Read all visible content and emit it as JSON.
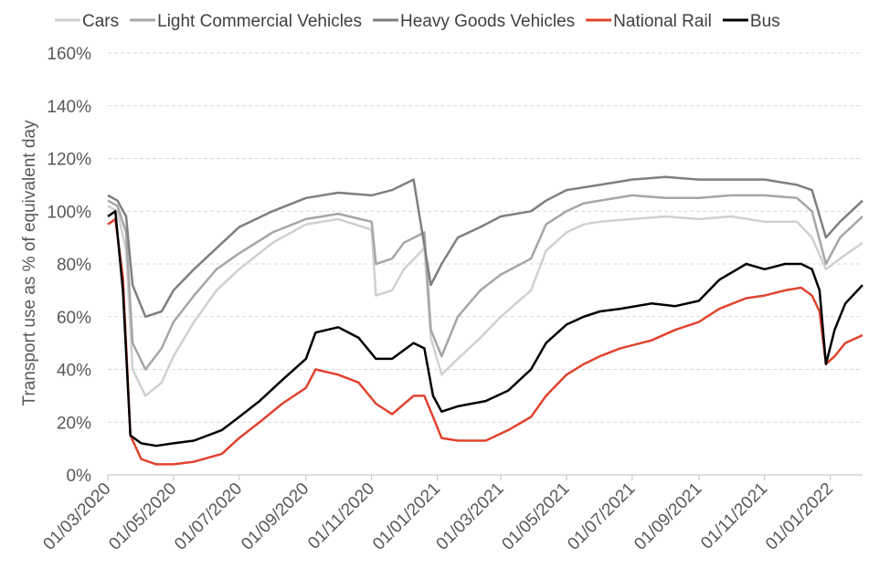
{
  "chart_data": {
    "type": "line",
    "title": "",
    "xlabel": "",
    "ylabel": "Transport use as % of equivalent day",
    "x_range": [
      "2020-03-01",
      "2022-01-31"
    ],
    "ylim": [
      0,
      160
    ],
    "y_ticks": [
      0,
      20,
      40,
      60,
      80,
      100,
      120,
      140,
      160
    ],
    "y_tick_labels": [
      "0%",
      "20%",
      "40%",
      "60%",
      "80%",
      "100%",
      "120%",
      "140%",
      "160%"
    ],
    "x_ticks": [
      "2020-03-01",
      "2020-05-01",
      "2020-07-01",
      "2020-09-01",
      "2020-11-01",
      "2021-01-01",
      "2021-03-01",
      "2021-05-01",
      "2021-07-01",
      "2021-09-01",
      "2021-11-01",
      "2022-01-01"
    ],
    "x_tick_labels": [
      "01/03/2020",
      "01/05/2020",
      "01/07/2020",
      "01/09/2020",
      "01/11/2020",
      "01/01/2021",
      "01/03/2021",
      "01/05/2021",
      "01/07/2021",
      "01/09/2021",
      "01/11/2021",
      "01/01/2022"
    ],
    "grid": "horizontal dashed",
    "legend_position": "top",
    "series": [
      {
        "name": "Cars",
        "color": "#d0d0d0",
        "x": [
          "2020-03-01",
          "2020-03-10",
          "2020-03-18",
          "2020-03-24",
          "2020-04-05",
          "2020-04-20",
          "2020-05-01",
          "2020-05-20",
          "2020-06-10",
          "2020-07-01",
          "2020-08-01",
          "2020-09-01",
          "2020-10-01",
          "2020-11-01",
          "2020-11-05",
          "2020-11-20",
          "2020-12-01",
          "2020-12-20",
          "2020-12-26",
          "2021-01-05",
          "2021-01-20",
          "2021-02-10",
          "2021-03-01",
          "2021-03-29",
          "2021-04-12",
          "2021-05-01",
          "2021-05-17",
          "2021-06-01",
          "2021-07-01",
          "2021-08-01",
          "2021-09-01",
          "2021-10-01",
          "2021-11-01",
          "2021-12-01",
          "2021-12-15",
          "2021-12-28",
          "2022-01-10",
          "2022-01-31"
        ],
        "y": [
          102,
          100,
          85,
          40,
          30,
          35,
          45,
          58,
          70,
          78,
          88,
          95,
          97,
          93,
          68,
          70,
          78,
          86,
          52,
          38,
          44,
          52,
          60,
          70,
          85,
          92,
          95,
          96,
          97,
          98,
          97,
          98,
          96,
          96,
          90,
          78,
          82,
          88
        ]
      },
      {
        "name": "Light Commercial Vehicles",
        "color": "#a6a6a6",
        "x": [
          "2020-03-01",
          "2020-03-10",
          "2020-03-18",
          "2020-03-24",
          "2020-04-05",
          "2020-04-20",
          "2020-05-01",
          "2020-05-20",
          "2020-06-10",
          "2020-07-01",
          "2020-08-01",
          "2020-09-01",
          "2020-10-01",
          "2020-11-01",
          "2020-11-05",
          "2020-11-20",
          "2020-12-01",
          "2020-12-20",
          "2020-12-26",
          "2021-01-05",
          "2021-01-20",
          "2021-02-10",
          "2021-03-01",
          "2021-03-29",
          "2021-04-12",
          "2021-05-01",
          "2021-05-17",
          "2021-06-01",
          "2021-07-01",
          "2021-08-01",
          "2021-09-01",
          "2021-10-01",
          "2021-11-01",
          "2021-12-01",
          "2021-12-15",
          "2021-12-28",
          "2022-01-10",
          "2022-01-31"
        ],
        "y": [
          104,
          102,
          92,
          50,
          40,
          48,
          58,
          68,
          78,
          84,
          92,
          97,
          99,
          96,
          80,
          82,
          88,
          92,
          55,
          45,
          60,
          70,
          76,
          82,
          95,
          100,
          103,
          104,
          106,
          105,
          105,
          106,
          106,
          105,
          100,
          80,
          90,
          98
        ]
      },
      {
        "name": "Heavy Goods Vehicles",
        "color": "#7f7f7f",
        "x": [
          "2020-03-01",
          "2020-03-10",
          "2020-03-18",
          "2020-03-24",
          "2020-04-05",
          "2020-04-20",
          "2020-05-01",
          "2020-05-20",
          "2020-06-10",
          "2020-07-01",
          "2020-08-01",
          "2020-09-01",
          "2020-10-01",
          "2020-11-01",
          "2020-11-20",
          "2020-12-10",
          "2020-12-26",
          "2021-01-05",
          "2021-01-20",
          "2021-02-10",
          "2021-03-01",
          "2021-03-29",
          "2021-04-12",
          "2021-05-01",
          "2021-06-01",
          "2021-07-01",
          "2021-08-01",
          "2021-09-01",
          "2021-10-01",
          "2021-11-01",
          "2021-12-01",
          "2021-12-15",
          "2021-12-28",
          "2022-01-10",
          "2022-01-31"
        ],
        "y": [
          106,
          104,
          98,
          72,
          60,
          62,
          70,
          78,
          86,
          94,
          100,
          105,
          107,
          106,
          108,
          112,
          72,
          80,
          90,
          94,
          98,
          100,
          104,
          108,
          110,
          112,
          113,
          112,
          112,
          112,
          110,
          108,
          90,
          96,
          104
        ]
      },
      {
        "name": "National Rail",
        "color": "#e0432f",
        "x": [
          "2020-03-01",
          "2020-03-08",
          "2020-03-15",
          "2020-03-22",
          "2020-04-01",
          "2020-04-15",
          "2020-05-01",
          "2020-05-20",
          "2020-06-15",
          "2020-07-01",
          "2020-07-20",
          "2020-08-10",
          "2020-09-01",
          "2020-09-10",
          "2020-10-01",
          "2020-10-20",
          "2020-11-05",
          "2020-11-20",
          "2020-12-10",
          "2020-12-20",
          "2020-12-28",
          "2021-01-05",
          "2021-01-20",
          "2021-02-15",
          "2021-03-08",
          "2021-03-29",
          "2021-04-12",
          "2021-05-01",
          "2021-05-17",
          "2021-06-01",
          "2021-06-20",
          "2021-07-19",
          "2021-08-10",
          "2021-09-01",
          "2021-09-20",
          "2021-10-15",
          "2021-11-01",
          "2021-11-20",
          "2021-12-05",
          "2021-12-15",
          "2021-12-22",
          "2021-12-28",
          "2022-01-05",
          "2022-01-15",
          "2022-01-31"
        ],
        "y": [
          95,
          97,
          75,
          15,
          6,
          4,
          4,
          5,
          8,
          14,
          20,
          27,
          33,
          40,
          38,
          35,
          27,
          23,
          30,
          30,
          22,
          14,
          13,
          13,
          17,
          22,
          30,
          38,
          42,
          45,
          48,
          51,
          55,
          58,
          63,
          67,
          68,
          70,
          71,
          68,
          62,
          42,
          45,
          50,
          53
        ]
      },
      {
        "name": "Bus",
        "color": "#000000",
        "x": [
          "2020-03-01",
          "2020-03-08",
          "2020-03-15",
          "2020-03-22",
          "2020-04-01",
          "2020-04-15",
          "2020-05-01",
          "2020-05-20",
          "2020-06-15",
          "2020-07-01",
          "2020-07-20",
          "2020-08-10",
          "2020-09-01",
          "2020-09-10",
          "2020-10-01",
          "2020-10-20",
          "2020-11-05",
          "2020-11-20",
          "2020-12-10",
          "2020-12-20",
          "2020-12-28",
          "2021-01-05",
          "2021-01-20",
          "2021-02-15",
          "2021-03-08",
          "2021-03-29",
          "2021-04-12",
          "2021-05-01",
          "2021-05-17",
          "2021-06-01",
          "2021-06-20",
          "2021-07-19",
          "2021-08-10",
          "2021-09-01",
          "2021-09-20",
          "2021-10-15",
          "2021-11-01",
          "2021-11-20",
          "2021-12-05",
          "2021-12-15",
          "2021-12-22",
          "2021-12-28",
          "2022-01-05",
          "2022-01-15",
          "2022-01-31"
        ],
        "y": [
          98,
          100,
          70,
          15,
          12,
          11,
          12,
          13,
          17,
          22,
          28,
          36,
          44,
          54,
          56,
          52,
          44,
          44,
          50,
          48,
          30,
          24,
          26,
          28,
          32,
          40,
          50,
          57,
          60,
          62,
          63,
          65,
          64,
          66,
          74,
          80,
          78,
          80,
          80,
          78,
          70,
          42,
          55,
          65,
          72
        ]
      }
    ]
  }
}
